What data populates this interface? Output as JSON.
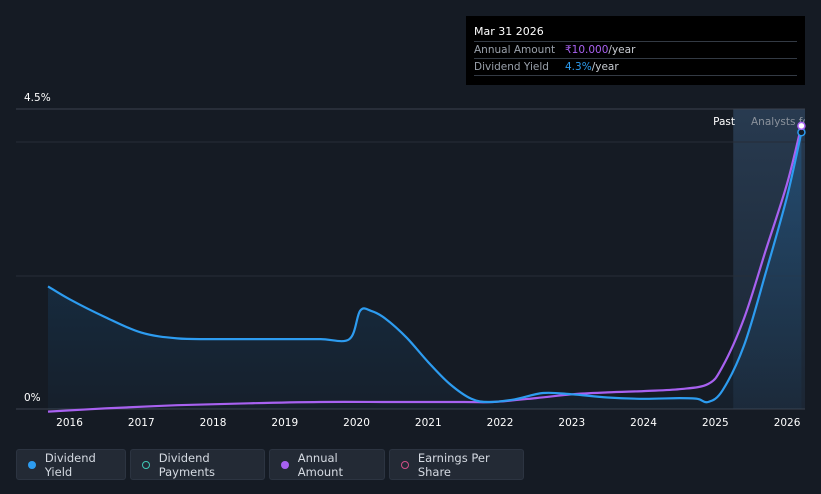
{
  "tooltip": {
    "date": "Mar 31 2026",
    "rows": [
      {
        "label": "Annual Amount",
        "value": "₹10.000",
        "unit": "/year"
      },
      {
        "label": "Dividend Yield",
        "value": "4.3%",
        "unit": "/year"
      }
    ]
  },
  "legend": [
    {
      "label": "Dividend Yield",
      "color": "#2d9cf0",
      "filled": true
    },
    {
      "label": "Dividend Payments",
      "color": "#3fc8b4",
      "filled": false
    },
    {
      "label": "Annual Amount",
      "color": "#a861f0",
      "filled": true
    },
    {
      "label": "Earnings Per Share",
      "color": "#d04e86",
      "filled": false
    }
  ],
  "chart_data": {
    "type": "line",
    "ylim": [
      0,
      4.5
    ],
    "y_tick_labels": [
      "4.5%",
      "0%"
    ],
    "x_tick_labels": [
      "2016",
      "2017",
      "2018",
      "2019",
      "2020",
      "2021",
      "2022",
      "2023",
      "2024",
      "2025",
      "2026"
    ],
    "xlim": [
      2015.7,
      2026.25
    ],
    "period_labels": {
      "past": "Past",
      "forecast": "Analysts fo"
    },
    "forecast_start": 2025.25,
    "grid": true,
    "legend_position": "bottom",
    "series": [
      {
        "name": "Dividend Yield",
        "color": "#2d9cf0",
        "x": [
          2015.7,
          2016.0,
          2016.5,
          2017.0,
          2017.5,
          2018.0,
          2018.5,
          2019.0,
          2019.5,
          2019.9,
          2020.05,
          2020.2,
          2020.4,
          2020.7,
          2021.0,
          2021.3,
          2021.6,
          2021.85,
          2022.2,
          2022.6,
          2023.0,
          2023.5,
          2024.0,
          2024.5,
          2024.75,
          2024.9,
          2025.1,
          2025.4,
          2025.7,
          2026.0,
          2026.2
        ],
        "y": [
          1.8,
          1.6,
          1.32,
          1.08,
          0.99,
          0.98,
          0.98,
          0.98,
          0.98,
          0.98,
          1.42,
          1.42,
          1.3,
          1.0,
          0.62,
          0.28,
          0.05,
          0.0,
          0.04,
          0.14,
          0.12,
          0.07,
          0.05,
          0.06,
          0.05,
          0.0,
          0.18,
          0.88,
          2.0,
          3.2,
          4.2
        ]
      },
      {
        "name": "Annual Amount",
        "color": "#a861f0",
        "x": [
          2015.7,
          2016.5,
          2017.5,
          2018.5,
          2019.5,
          2020.5,
          2021.5,
          2021.9,
          2022.5,
          2023.0,
          2023.5,
          2024.0,
          2024.5,
          2024.9,
          2025.1,
          2025.4,
          2025.7,
          2026.0,
          2026.2
        ],
        "y": [
          -0.15,
          -0.1,
          -0.05,
          -0.02,
          0.0,
          0.0,
          0.0,
          0.0,
          0.06,
          0.12,
          0.15,
          0.17,
          0.2,
          0.28,
          0.55,
          1.3,
          2.35,
          3.4,
          4.3
        ]
      }
    ]
  }
}
